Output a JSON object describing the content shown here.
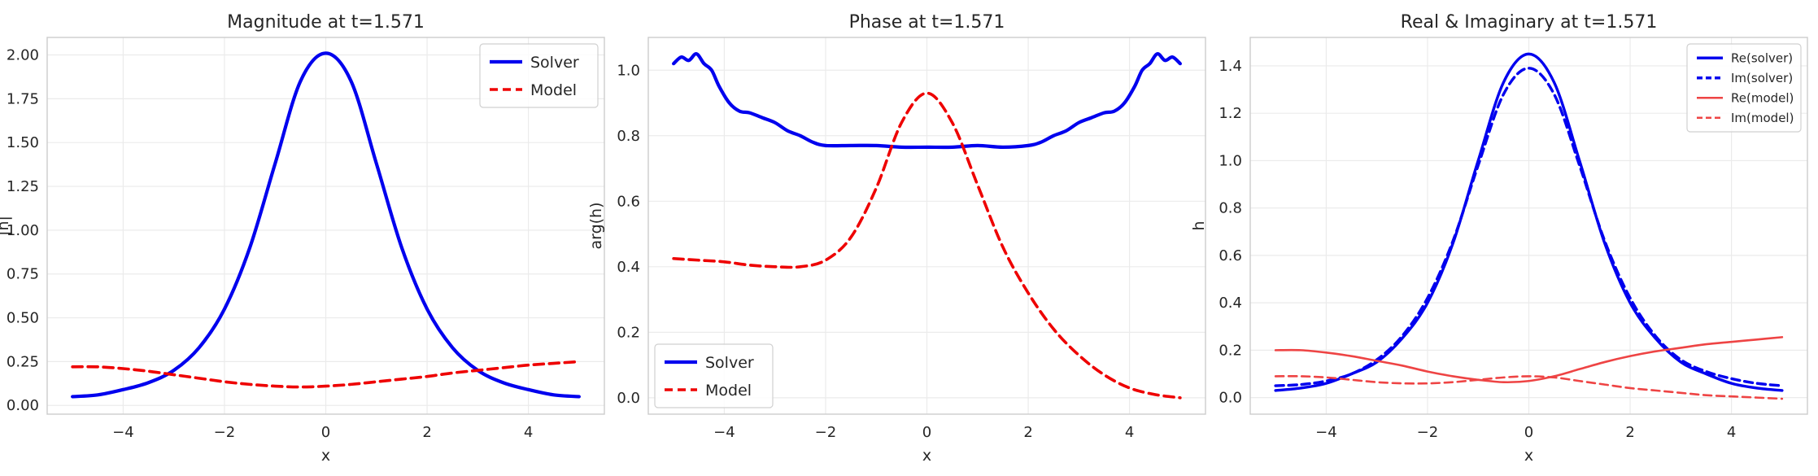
{
  "chart_data": [
    {
      "type": "line",
      "title": "Magnitude at t=1.571",
      "xlabel": "x",
      "ylabel": "|h|",
      "xlim": [
        -5.5,
        5.5
      ],
      "ylim": [
        -0.05,
        2.1
      ],
      "xticks": [
        "−4",
        "−2",
        "0",
        "2",
        "4"
      ],
      "xtick_values": [
        -4,
        -2,
        0,
        2,
        4
      ],
      "yticks": [
        "0.00",
        "0.25",
        "0.50",
        "0.75",
        "1.00",
        "1.25",
        "1.50",
        "1.75",
        "2.00"
      ],
      "ytick_values": [
        0,
        0.25,
        0.5,
        0.75,
        1.0,
        1.25,
        1.5,
        1.75,
        2.0
      ],
      "grid": true,
      "legend": "top-right",
      "series": [
        {
          "name": "Solver",
          "color": "#0000ee",
          "style": "solid",
          "x": [
            -5,
            -4.5,
            -4,
            -3.5,
            -3,
            -2.5,
            -2,
            -1.5,
            -1,
            -0.5,
            0,
            0.5,
            1,
            1.5,
            2,
            2.5,
            3,
            3.5,
            4,
            4.5,
            5
          ],
          "y": [
            0.05,
            0.06,
            0.09,
            0.13,
            0.2,
            0.33,
            0.55,
            0.9,
            1.38,
            1.85,
            2.01,
            1.85,
            1.38,
            0.9,
            0.55,
            0.33,
            0.2,
            0.13,
            0.09,
            0.06,
            0.05
          ]
        },
        {
          "name": "Model",
          "color": "#ee0000",
          "style": "dashed",
          "x": [
            -5,
            -4.5,
            -4,
            -3.5,
            -3,
            -2.5,
            -2,
            -1.5,
            -1,
            -0.5,
            0,
            0.5,
            1,
            1.5,
            2,
            2.5,
            3,
            3.5,
            4,
            4.5,
            5
          ],
          "y": [
            0.22,
            0.22,
            0.21,
            0.195,
            0.175,
            0.155,
            0.135,
            0.12,
            0.11,
            0.105,
            0.11,
            0.12,
            0.135,
            0.15,
            0.165,
            0.185,
            0.2,
            0.215,
            0.23,
            0.24,
            0.25
          ]
        }
      ]
    },
    {
      "type": "line",
      "title": "Phase at t=1.571",
      "xlabel": "x",
      "ylabel": "arg(h)",
      "xlim": [
        -5.5,
        5.5
      ],
      "ylim": [
        -0.05,
        1.1
      ],
      "xticks": [
        "−4",
        "−2",
        "0",
        "2",
        "4"
      ],
      "xtick_values": [
        -4,
        -2,
        0,
        2,
        4
      ],
      "yticks": [
        "0.0",
        "0.2",
        "0.4",
        "0.6",
        "0.8",
        "1.0"
      ],
      "ytick_values": [
        0,
        0.2,
        0.4,
        0.6,
        0.8,
        1.0
      ],
      "grid": true,
      "legend": "bottom-left",
      "series": [
        {
          "name": "Solver",
          "color": "#0000ee",
          "style": "solid",
          "x": [
            -5,
            -4.85,
            -4.7,
            -4.55,
            -4.4,
            -4.25,
            -4.1,
            -3.9,
            -3.7,
            -3.5,
            -3.25,
            -3,
            -2.75,
            -2.5,
            -2.25,
            -2,
            -1.5,
            -1,
            -0.5,
            0,
            0.5,
            1,
            1.5,
            2,
            2.25,
            2.5,
            2.75,
            3,
            3.25,
            3.5,
            3.7,
            3.9,
            4.1,
            4.25,
            4.4,
            4.55,
            4.7,
            4.85,
            5
          ],
          "y": [
            1.02,
            1.04,
            1.03,
            1.05,
            1.02,
            1.0,
            0.95,
            0.9,
            0.875,
            0.87,
            0.855,
            0.84,
            0.815,
            0.8,
            0.78,
            0.77,
            0.77,
            0.77,
            0.765,
            0.765,
            0.765,
            0.77,
            0.765,
            0.77,
            0.78,
            0.8,
            0.815,
            0.84,
            0.855,
            0.87,
            0.875,
            0.9,
            0.95,
            1.0,
            1.02,
            1.05,
            1.03,
            1.04,
            1.02
          ]
        },
        {
          "name": "Model",
          "color": "#ee0000",
          "style": "dashed",
          "x": [
            -5,
            -4.5,
            -4,
            -3.5,
            -3,
            -2.5,
            -2,
            -1.5,
            -1,
            -0.5,
            0,
            0.5,
            1,
            1.5,
            2,
            2.5,
            3,
            3.5,
            4,
            4.5,
            5
          ],
          "y": [
            0.425,
            0.42,
            0.415,
            0.405,
            0.4,
            0.4,
            0.42,
            0.49,
            0.64,
            0.84,
            0.93,
            0.84,
            0.65,
            0.46,
            0.32,
            0.21,
            0.13,
            0.07,
            0.03,
            0.01,
            0.0
          ]
        }
      ]
    },
    {
      "type": "line",
      "title": "Real & Imaginary at t=1.571",
      "xlabel": "x",
      "ylabel": "h",
      "xlim": [
        -5.5,
        5.5
      ],
      "ylim": [
        -0.07,
        1.52
      ],
      "xticks": [
        "−4",
        "−2",
        "0",
        "2",
        "4"
      ],
      "xtick_values": [
        -4,
        -2,
        0,
        2,
        4
      ],
      "yticks": [
        "0.0",
        "0.2",
        "0.4",
        "0.6",
        "0.8",
        "1.0",
        "1.2",
        "1.4"
      ],
      "ytick_values": [
        0,
        0.2,
        0.4,
        0.6,
        0.8,
        1.0,
        1.2,
        1.4
      ],
      "grid": true,
      "legend": "top-right",
      "series": [
        {
          "name": "Re(solver)",
          "color": "#0000ee",
          "style": "solid",
          "x": [
            -5,
            -4.5,
            -4,
            -3.5,
            -3,
            -2.5,
            -2,
            -1.5,
            -1,
            -0.5,
            0,
            0.5,
            1,
            1.5,
            2,
            2.5,
            3,
            3.5,
            4,
            4.5,
            5
          ],
          "y": [
            0.03,
            0.04,
            0.06,
            0.1,
            0.15,
            0.25,
            0.4,
            0.65,
            1.0,
            1.33,
            1.45,
            1.33,
            1.0,
            0.65,
            0.4,
            0.25,
            0.15,
            0.1,
            0.06,
            0.04,
            0.03
          ]
        },
        {
          "name": "Im(solver)",
          "color": "#0000ee",
          "style": "dashed",
          "x": [
            -5,
            -4.5,
            -4,
            -3.5,
            -3,
            -2.5,
            -2,
            -1.5,
            -1,
            -0.5,
            0,
            0.5,
            1,
            1.5,
            2,
            2.5,
            3,
            3.5,
            4,
            4.5,
            5
          ],
          "y": [
            0.05,
            0.055,
            0.07,
            0.1,
            0.16,
            0.26,
            0.42,
            0.66,
            0.98,
            1.28,
            1.39,
            1.28,
            0.98,
            0.66,
            0.42,
            0.26,
            0.16,
            0.11,
            0.08,
            0.06,
            0.05
          ]
        },
        {
          "name": "Re(model)",
          "color": "#ee4444",
          "style": "solid",
          "x": [
            -5,
            -4.5,
            -4,
            -3.5,
            -3,
            -2.5,
            -2,
            -1.5,
            -1,
            -0.5,
            0,
            0.5,
            1,
            1.5,
            2,
            2.5,
            3,
            3.5,
            4,
            4.5,
            5
          ],
          "y": [
            0.2,
            0.2,
            0.19,
            0.175,
            0.155,
            0.135,
            0.11,
            0.09,
            0.075,
            0.065,
            0.07,
            0.09,
            0.12,
            0.15,
            0.175,
            0.195,
            0.21,
            0.225,
            0.235,
            0.245,
            0.255
          ]
        },
        {
          "name": "Im(model)",
          "color": "#ee4444",
          "style": "dashed",
          "x": [
            -5,
            -4.5,
            -4,
            -3.5,
            -3,
            -2.5,
            -2,
            -1.5,
            -1,
            -0.5,
            0,
            0.5,
            1,
            1.5,
            2,
            2.5,
            3,
            3.5,
            4,
            4.5,
            5
          ],
          "y": [
            0.09,
            0.09,
            0.085,
            0.075,
            0.065,
            0.06,
            0.06,
            0.065,
            0.075,
            0.085,
            0.09,
            0.085,
            0.07,
            0.055,
            0.04,
            0.03,
            0.02,
            0.01,
            0.005,
            0.0,
            -0.005
          ]
        }
      ]
    }
  ]
}
